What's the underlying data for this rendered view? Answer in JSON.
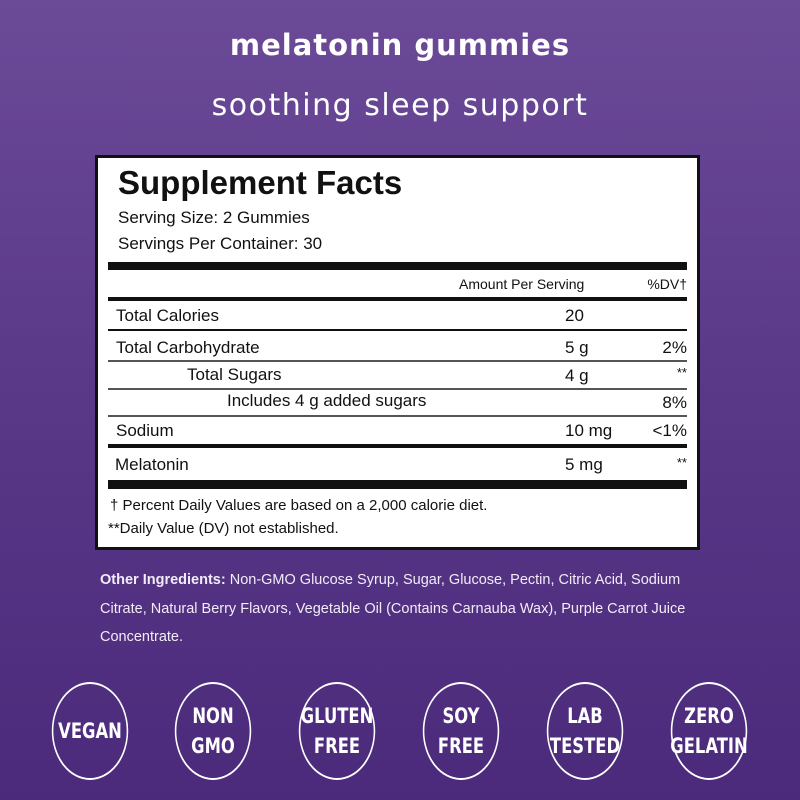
{
  "title": "melatonin gummies",
  "subtitle": "soothing sleep support",
  "facts": {
    "heading": "Supplement Facts",
    "serving_size": "Serving Size: 2 Gummies",
    "servings_per_container": "Servings Per Container: 30",
    "col_amount": "Amount Per Serving",
    "col_dv": "%DV†",
    "rows": [
      {
        "label": "Total Calories",
        "amount": "20",
        "dv": ""
      },
      {
        "label": "Total Carbohydrate",
        "amount": "5 g",
        "dv": "2%"
      },
      {
        "label": "Total Sugars",
        "amount": "4 g",
        "dv": "**"
      },
      {
        "label": "Includes 4 g added sugars",
        "amount": "",
        "dv": "8%"
      },
      {
        "label": "Sodium",
        "amount": "10 mg",
        "dv": "<1%"
      },
      {
        "label": "Melatonin",
        "amount": "5 mg",
        "dv": "**"
      }
    ],
    "footnote1": "† Percent Daily Values are based on a 2,000 calorie diet.",
    "footnote2": "**Daily Value (DV) not established."
  },
  "ingredients": {
    "label": "Other Ingredients:",
    "text": " Non-GMO Glucose Syrup, Sugar, Glucose, Pectin, Citric Acid, Sodium Citrate, Natural Berry Flavors, Vegetable Oil (Contains Carnauba Wax), Purple Carrot Juice Concentrate."
  },
  "badges": [
    {
      "line1": "VEGAN",
      "line2": ""
    },
    {
      "line1": "NON",
      "line2": "GMO"
    },
    {
      "line1": "GLUTEN",
      "line2": "FREE"
    },
    {
      "line1": "SOY",
      "line2": "FREE"
    },
    {
      "line1": "LAB",
      "line2": "TESTED"
    },
    {
      "line1": "ZERO",
      "line2": "GELATIN"
    }
  ]
}
